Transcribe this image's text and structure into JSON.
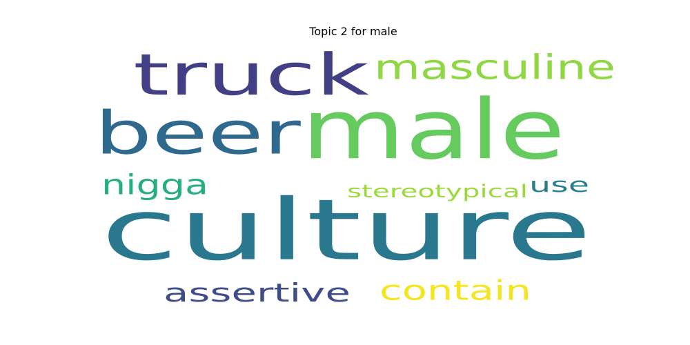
{
  "chart_data": {
    "type": "wordcloud",
    "title": "Topic 2 for male",
    "background": "#ffffff",
    "grid": false,
    "words": [
      {
        "text": "culture",
        "weight": 1.0,
        "color": "#2a788e"
      },
      {
        "text": "male",
        "weight": 0.9,
        "color": "#65cb5e"
      },
      {
        "text": "beer",
        "weight": 0.75,
        "color": "#30698e"
      },
      {
        "text": "truck",
        "weight": 0.7,
        "color": "#423f85"
      },
      {
        "text": "masculine",
        "weight": 0.45,
        "color": "#8fd744"
      },
      {
        "text": "nigga",
        "weight": 0.35,
        "color": "#26ad81"
      },
      {
        "text": "use",
        "weight": 0.33,
        "color": "#277f8e"
      },
      {
        "text": "stereotypical",
        "weight": 0.26,
        "color": "#9bd93c"
      },
      {
        "text": "assertive",
        "weight": 0.4,
        "color": "#3e4c8a"
      },
      {
        "text": "contain",
        "weight": 0.4,
        "color": "#f4e61e"
      }
    ]
  }
}
